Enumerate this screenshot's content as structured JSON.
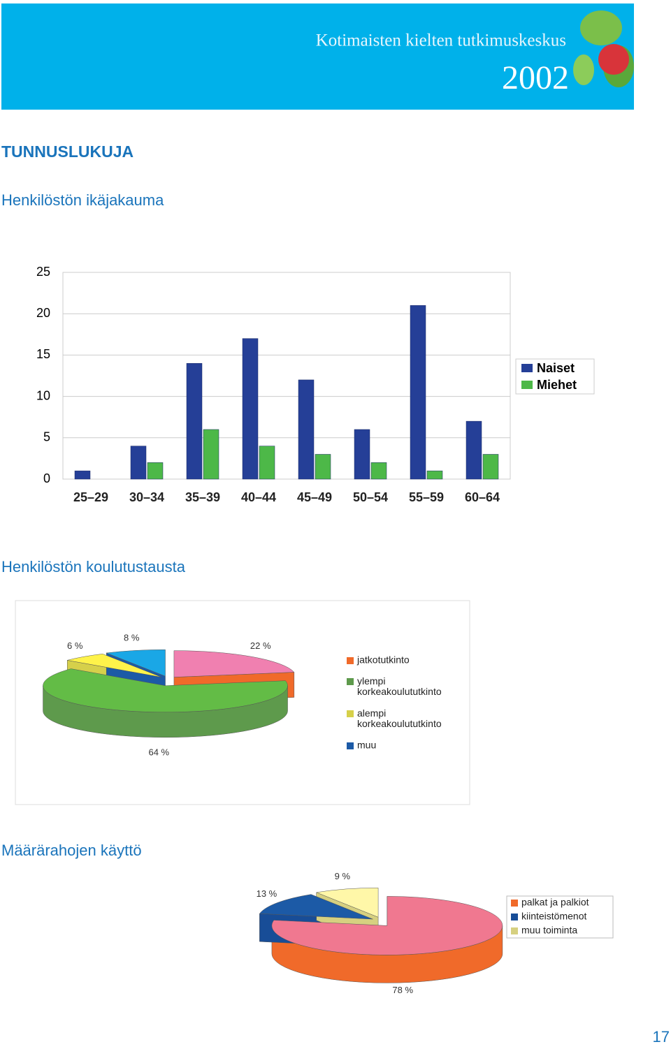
{
  "header": {
    "organization": "Kotimaisten kielten tutkimuskeskus",
    "year": "2002"
  },
  "section_title": "TUNNUSLUKUJA",
  "page_number": "17",
  "chart_data": [
    {
      "type": "bar",
      "heading": "Henkilöstön ikäjakauma",
      "categories": [
        "25–29",
        "30–34",
        "35–39",
        "40–44",
        "45–49",
        "50–54",
        "55–59",
        "60–64"
      ],
      "series": [
        {
          "name": "Naiset",
          "color": "#253f97",
          "values": [
            1,
            4,
            14,
            17,
            12,
            6,
            21,
            7
          ]
        },
        {
          "name": "Miehet",
          "color": "#4db848",
          "values": [
            0,
            2,
            6,
            4,
            3,
            2,
            1,
            3
          ]
        }
      ],
      "ylim": [
        0,
        25
      ],
      "yticks": [
        0,
        5,
        10,
        15,
        20,
        25
      ],
      "grid": true,
      "legend": "right"
    },
    {
      "type": "pie",
      "heading": "Henkilöstön koulutustausta",
      "categories": [
        "jatkotutkinto",
        "ylempi korkeakoulututkinto",
        "alempi korkeakoulututkinto",
        "muu"
      ],
      "values": [
        22,
        64,
        6,
        8
      ],
      "value_labels": [
        "22 %",
        "64 %",
        "6 %",
        "8 %"
      ],
      "colors": [
        "#f080b0",
        "#63bc46",
        "#fff34a",
        "#1aa7e6"
      ],
      "side_colors": [
        "#f06a2a",
        "#5e9a4c",
        "#d6d04a",
        "#1c5aa6"
      ],
      "legend": "right"
    },
    {
      "type": "pie",
      "heading": "Määrärahojen käyttö",
      "categories": [
        "palkat ja palkiot",
        "kiinteistömenot",
        "muu toiminta"
      ],
      "values": [
        78,
        13,
        9
      ],
      "value_labels": [
        "78 %",
        "13 %",
        "9 %"
      ],
      "colors": [
        "#f07890",
        "#1c5aa6",
        "#fff7a8"
      ],
      "side_colors": [
        "#f06a2a",
        "#184d97",
        "#d6d080"
      ],
      "legend": "right"
    }
  ]
}
